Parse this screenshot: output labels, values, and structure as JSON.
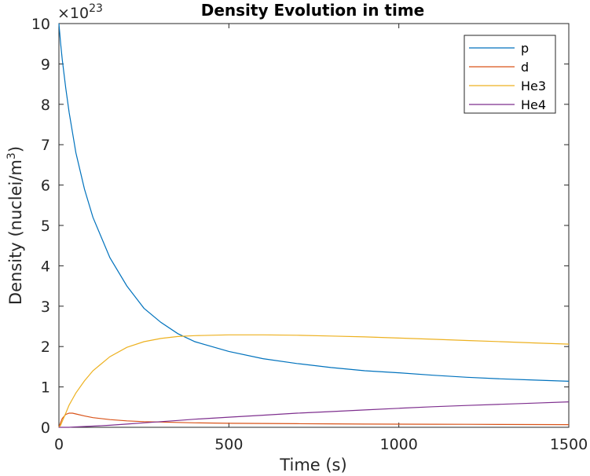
{
  "chart_data": {
    "type": "line",
    "title": "Density Evolution in time",
    "xlabel": "Time (s)",
    "ylabel_main": "Density (nuclei/m",
    "ylabel_sup": "3",
    "ylabel_close": ")",
    "y_exponent_base": "×10",
    "y_exponent_power": "23",
    "xlim": [
      0,
      1500
    ],
    "ylim": [
      0,
      10
    ],
    "x_ticks": [
      0,
      500,
      1000,
      1500
    ],
    "y_ticks": [
      0,
      1,
      2,
      3,
      4,
      5,
      6,
      7,
      8,
      9,
      10
    ],
    "x_tick_labels": [
      "0",
      "500",
      "1000",
      "1500"
    ],
    "y_tick_labels": [
      "0",
      "1",
      "2",
      "3",
      "4",
      "5",
      "6",
      "7",
      "8",
      "9",
      "10"
    ],
    "grid": false,
    "legend_position": "top-right",
    "x": [
      0,
      5,
      10,
      20,
      30,
      40,
      50,
      75,
      100,
      150,
      200,
      250,
      300,
      350,
      400,
      500,
      600,
      700,
      800,
      900,
      1000,
      1100,
      1200,
      1300,
      1400,
      1500
    ],
    "series": [
      {
        "name": "p",
        "color": "#0072bd",
        "values": [
          10.0,
          9.5,
          9.1,
          8.4,
          7.8,
          7.3,
          6.8,
          5.9,
          5.2,
          4.2,
          3.5,
          2.95,
          2.6,
          2.32,
          2.12,
          1.88,
          1.7,
          1.58,
          1.48,
          1.4,
          1.35,
          1.29,
          1.24,
          1.2,
          1.17,
          1.14
        ]
      },
      {
        "name": "d",
        "color": "#d95319",
        "values": [
          0.0,
          0.12,
          0.22,
          0.32,
          0.35,
          0.35,
          0.33,
          0.28,
          0.24,
          0.19,
          0.16,
          0.14,
          0.13,
          0.12,
          0.11,
          0.1,
          0.095,
          0.09,
          0.085,
          0.08,
          0.078,
          0.075,
          0.073,
          0.07,
          0.068,
          0.066
        ]
      },
      {
        "name": "He3",
        "color": "#edb120",
        "values": [
          0.0,
          0.05,
          0.15,
          0.35,
          0.55,
          0.7,
          0.85,
          1.15,
          1.4,
          1.75,
          1.98,
          2.12,
          2.2,
          2.25,
          2.27,
          2.29,
          2.29,
          2.28,
          2.26,
          2.24,
          2.21,
          2.18,
          2.15,
          2.12,
          2.09,
          2.06
        ]
      },
      {
        "name": "He4",
        "color": "#7e2f8e",
        "values": [
          0.0,
          0.0,
          0.0,
          0.0,
          0.0,
          0.005,
          0.01,
          0.02,
          0.03,
          0.05,
          0.08,
          0.11,
          0.14,
          0.17,
          0.2,
          0.25,
          0.3,
          0.35,
          0.39,
          0.43,
          0.47,
          0.51,
          0.54,
          0.57,
          0.6,
          0.63
        ]
      }
    ]
  }
}
